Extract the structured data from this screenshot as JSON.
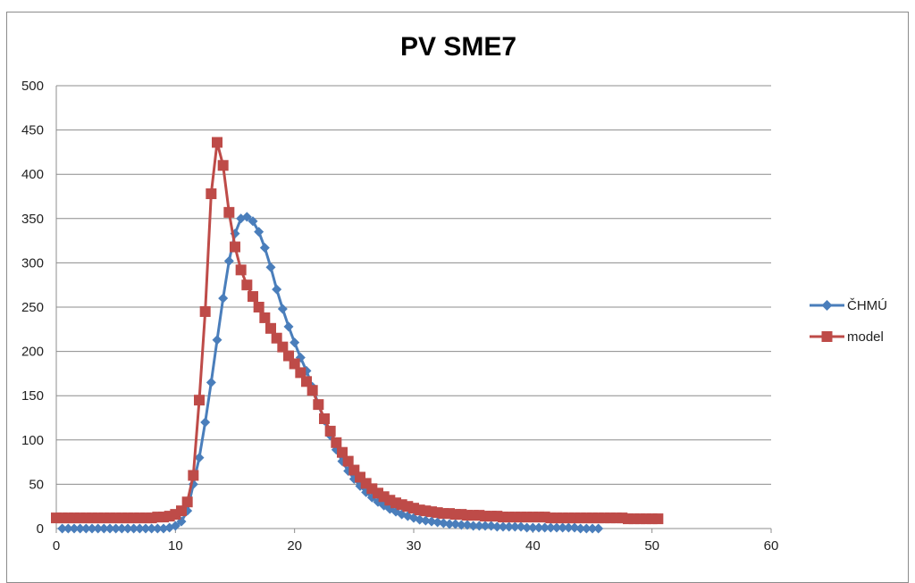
{
  "chart_data": {
    "type": "line",
    "title": "PV SME7",
    "xlabel": "",
    "ylabel": "",
    "xlim": [
      0,
      60
    ],
    "ylim": [
      0,
      500
    ],
    "x_ticks": [
      0,
      10,
      20,
      30,
      40,
      50,
      60
    ],
    "y_ticks": [
      0,
      50,
      100,
      150,
      200,
      250,
      300,
      350,
      400,
      450,
      500
    ],
    "grid": "horizontal",
    "legend_position": "right",
    "series": [
      {
        "name": "ČHMÚ",
        "color": "#4a7ebb",
        "marker": "diamond",
        "x": [
          0.5,
          1,
          1.5,
          2,
          2.5,
          3,
          3.5,
          4,
          4.5,
          5,
          5.5,
          6,
          6.5,
          7,
          7.5,
          8,
          8.5,
          9,
          9.5,
          10,
          10.5,
          11,
          11.5,
          12,
          12.5,
          13,
          13.5,
          14,
          14.5,
          15,
          15.5,
          16,
          16.5,
          17,
          17.5,
          18,
          18.5,
          19,
          19.5,
          20,
          20.5,
          21,
          21.5,
          22,
          22.5,
          23,
          23.5,
          24,
          24.5,
          25,
          25.5,
          26,
          26.5,
          27,
          27.5,
          28,
          28.5,
          29,
          29.5,
          30,
          30.5,
          31,
          31.5,
          32,
          32.5,
          33,
          33.5,
          34,
          34.5,
          35,
          35.5,
          36,
          36.5,
          37,
          37.5,
          38,
          38.5,
          39,
          39.5,
          40,
          40.5,
          41,
          41.5,
          42,
          42.5,
          43,
          43.5,
          44,
          44.5,
          45,
          45.5
        ],
        "y": [
          0,
          0,
          0,
          0,
          0,
          0,
          0,
          0,
          0,
          0,
          0,
          0,
          0,
          0,
          0,
          0,
          0,
          0,
          1,
          3,
          8,
          20,
          50,
          80,
          120,
          165,
          213,
          260,
          302,
          333,
          350,
          352,
          347,
          335,
          317,
          295,
          270,
          248,
          228,
          210,
          193,
          178,
          160,
          140,
          122,
          105,
          89,
          76,
          65,
          56,
          48,
          41,
          35,
          30,
          26,
          22,
          19,
          16,
          14,
          12,
          10,
          9,
          8,
          7,
          6,
          5,
          5,
          4,
          4,
          3,
          3,
          3,
          3,
          2,
          2,
          2,
          2,
          2,
          1,
          1,
          1,
          1,
          1,
          1,
          1,
          1,
          1,
          0,
          0,
          0,
          0
        ]
      },
      {
        "name": "model",
        "color": "#be4b48",
        "marker": "square",
        "x": [
          0,
          0.5,
          1,
          1.5,
          2,
          2.5,
          3,
          3.5,
          4,
          4.5,
          5,
          5.5,
          6,
          6.5,
          7,
          7.5,
          8,
          8.5,
          9,
          9.5,
          10,
          10.5,
          11,
          11.5,
          12,
          12.5,
          13,
          13.5,
          14,
          14.5,
          15,
          15.5,
          16,
          16.5,
          17,
          17.5,
          18,
          18.5,
          19,
          19.5,
          20,
          20.5,
          21,
          21.5,
          22,
          22.5,
          23,
          23.5,
          24,
          24.5,
          25,
          25.5,
          26,
          26.5,
          27,
          27.5,
          28,
          28.5,
          29,
          29.5,
          30,
          30.5,
          31,
          31.5,
          32,
          32.5,
          33,
          33.5,
          34,
          34.5,
          35,
          35.5,
          36,
          36.5,
          37,
          37.5,
          38,
          38.5,
          39,
          39.5,
          40,
          40.5,
          41,
          41.5,
          42,
          42.5,
          43,
          43.5,
          44,
          44.5,
          45,
          45.5,
          46,
          46.5,
          47,
          47.5,
          48,
          48.5,
          49,
          49.5,
          50,
          50.5
        ],
        "y": [
          12,
          12,
          12,
          12,
          12,
          12,
          12,
          12,
          12,
          12,
          12,
          12,
          12,
          12,
          12,
          12,
          12,
          13,
          13,
          14,
          16,
          20,
          30,
          60,
          145,
          245,
          378,
          436,
          410,
          357,
          318,
          292,
          275,
          262,
          250,
          238,
          226,
          215,
          205,
          195,
          186,
          176,
          166,
          156,
          140,
          124,
          110,
          97,
          86,
          76,
          66,
          58,
          51,
          45,
          40,
          36,
          32,
          29,
          27,
          25,
          23,
          21,
          20,
          19,
          18,
          17,
          17,
          16,
          16,
          15,
          15,
          15,
          14,
          14,
          14,
          13,
          13,
          13,
          13,
          13,
          13,
          13,
          13,
          12,
          12,
          12,
          12,
          12,
          12,
          12,
          12,
          12,
          12,
          12,
          12,
          12,
          11,
          11,
          11,
          11,
          11,
          11
        ]
      }
    ]
  }
}
